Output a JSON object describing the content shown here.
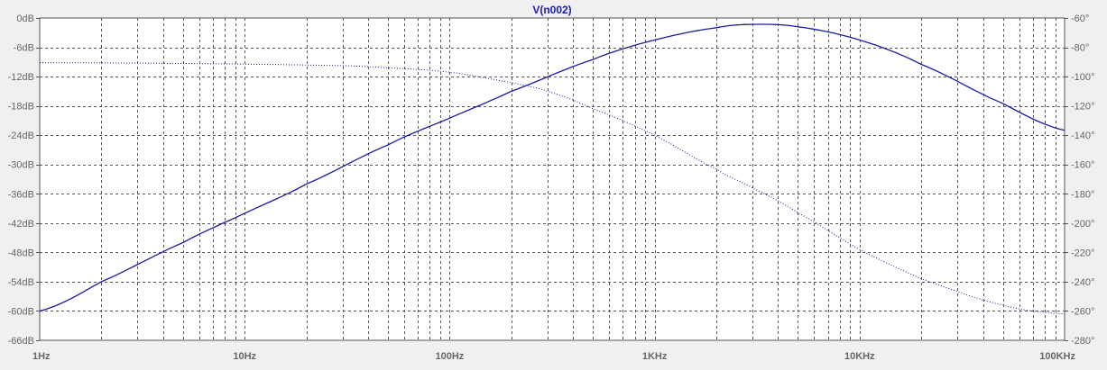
{
  "chart_data": {
    "type": "line",
    "title": "V(n002)",
    "colors": {
      "background": "#f0f0f0",
      "plot_area": "#ffffff",
      "grid": "#555555",
      "trace": "#1a1aa8",
      "title": "#1a1acc",
      "tick_text": "#666666"
    },
    "x_axis": {
      "scale": "log",
      "range": [
        1,
        100000
      ],
      "tick_labels": [
        {
          "value": 1,
          "label": "1Hz"
        },
        {
          "value": 10,
          "label": "10Hz"
        },
        {
          "value": 100,
          "label": "100Hz"
        },
        {
          "value": 1000,
          "label": "1KHz"
        },
        {
          "value": 10000,
          "label": "10KHz"
        },
        {
          "value": 100000,
          "label": "100KHz"
        }
      ],
      "minor_grid": true
    },
    "y_left": {
      "range": [
        -66,
        0
      ],
      "tick_labels": [
        {
          "value": 0,
          "label": "0dB"
        },
        {
          "value": -6,
          "label": "-6dB"
        },
        {
          "value": -12,
          "label": "-12dB"
        },
        {
          "value": -18,
          "label": "-18dB"
        },
        {
          "value": -24,
          "label": "-24dB"
        },
        {
          "value": -30,
          "label": "-30dB"
        },
        {
          "value": -36,
          "label": "-36dB"
        },
        {
          "value": -42,
          "label": "-42dB"
        },
        {
          "value": -48,
          "label": "-48dB"
        },
        {
          "value": -54,
          "label": "-54dB"
        },
        {
          "value": -60,
          "label": "-60dB"
        },
        {
          "value": -66,
          "label": "-66dB"
        }
      ]
    },
    "y_right": {
      "range": [
        -280,
        -60
      ],
      "tick_labels": [
        {
          "value": -60,
          "label": "-60°"
        },
        {
          "value": -80,
          "label": "-80°"
        },
        {
          "value": -100,
          "label": "-100°"
        },
        {
          "value": -120,
          "label": "-120°"
        },
        {
          "value": -140,
          "label": "-140°"
        },
        {
          "value": -160,
          "label": "-160°"
        },
        {
          "value": -180,
          "label": "-180°"
        },
        {
          "value": -200,
          "label": "-200°"
        },
        {
          "value": -220,
          "label": "-220°"
        },
        {
          "value": -240,
          "label": "-240°"
        },
        {
          "value": -260,
          "label": "-260°"
        },
        {
          "value": -280,
          "label": "-280°"
        }
      ]
    },
    "grid": true,
    "series": [
      {
        "quantity": "magnitude",
        "axis": "left",
        "style": "solid",
        "points": [
          [
            1,
            -60
          ],
          [
            2,
            -54
          ],
          [
            5,
            -46
          ],
          [
            10,
            -40
          ],
          [
            20,
            -34
          ],
          [
            50,
            -26
          ],
          [
            100,
            -20.5
          ],
          [
            200,
            -15
          ],
          [
            500,
            -8.5
          ],
          [
            1000,
            -4.5
          ],
          [
            2000,
            -2
          ],
          [
            3000,
            -1.3
          ],
          [
            5000,
            -1.8
          ],
          [
            10000,
            -4.5
          ],
          [
            20000,
            -9.5
          ],
          [
            50000,
            -17.5
          ],
          [
            100000,
            -23
          ]
        ]
      },
      {
        "quantity": "phase",
        "axis": "right",
        "style": "dotted",
        "points": [
          [
            1,
            -90.5
          ],
          [
            3,
            -90.8
          ],
          [
            10,
            -91.5
          ],
          [
            30,
            -92.5
          ],
          [
            50,
            -94
          ],
          [
            100,
            -97
          ],
          [
            200,
            -104
          ],
          [
            300,
            -110
          ],
          [
            500,
            -122
          ],
          [
            1000,
            -140
          ],
          [
            2000,
            -163
          ],
          [
            3000,
            -176
          ],
          [
            5000,
            -193
          ],
          [
            10000,
            -218
          ],
          [
            20000,
            -238
          ],
          [
            50000,
            -256
          ],
          [
            100000,
            -262
          ]
        ]
      }
    ]
  }
}
